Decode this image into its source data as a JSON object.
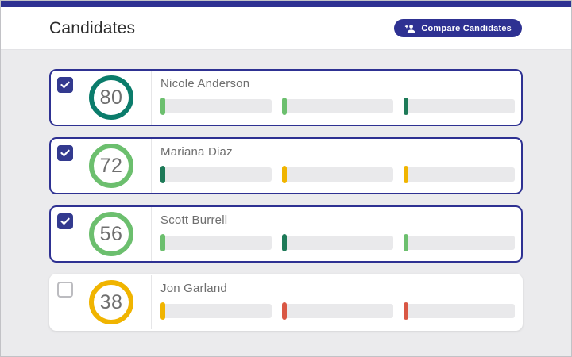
{
  "header": {
    "title": "Candidates",
    "compare_button_label": "Compare Candidates"
  },
  "palette": {
    "navy": "#2e3192",
    "teal": "#0b7c6b",
    "green": "#6cbf6e",
    "dark-green": "#1e7a58",
    "yellow": "#f0b400",
    "red": "#d95744"
  },
  "candidates": [
    {
      "name": "Nicole Anderson",
      "score": "80",
      "selected": true,
      "score_color": "teal",
      "bar_markers": [
        "green",
        "green",
        "dark-green"
      ]
    },
    {
      "name": "Mariana Diaz",
      "score": "72",
      "selected": true,
      "score_color": "green",
      "bar_markers": [
        "dark-green",
        "yellow",
        "yellow"
      ]
    },
    {
      "name": "Scott Burrell",
      "score": "56",
      "selected": true,
      "score_color": "green",
      "bar_markers": [
        "green",
        "dark-green",
        "green"
      ]
    },
    {
      "name": "Jon Garland",
      "score": "38",
      "selected": false,
      "score_color": "yellow",
      "bar_markers": [
        "yellow",
        "red",
        "red"
      ]
    }
  ]
}
